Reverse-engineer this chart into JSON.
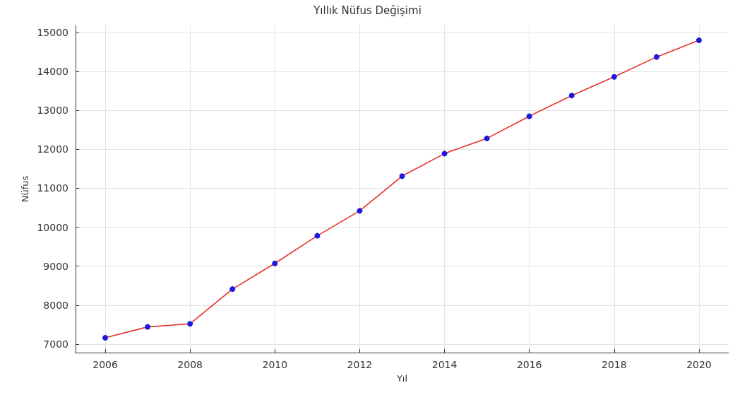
{
  "chart_data": {
    "type": "line",
    "title": "Yıllık Nüfus Değişimi",
    "xlabel": "Yıl",
    "ylabel": "Nüfus",
    "x": [
      2006,
      2007,
      2008,
      2009,
      2010,
      2011,
      2012,
      2013,
      2014,
      2015,
      2016,
      2017,
      2018,
      2019,
      2020
    ],
    "series": [
      {
        "color": "#e8302a",
        "colors": [
          "#1a1adc",
          "#1a1adc",
          "#1a1adc",
          "#1a1adc",
          "#1a1adc",
          "#1a1adc",
          "#1a1adc",
          "#1a1adc",
          "#1a1adc",
          "#1a1adc",
          "#1a1adc",
          "#1a1adc",
          "#1a1adc",
          "#1a1adc",
          "#1a1adc"
        ],
        "values": [
          7160,
          7440,
          7520,
          8410,
          9070,
          9780,
          10420,
          11310,
          11890,
          12280,
          12850,
          13380,
          13860,
          14370,
          14800
        ]
      }
    ],
    "xlim": [
      2005.3,
      2020.7
    ],
    "xticks": [
      2006,
      2008,
      2010,
      2012,
      2014,
      2016,
      2018,
      2020
    ],
    "ylim": [
      6780,
      15180
    ],
    "yticks": [
      7000,
      8000,
      9000,
      10000,
      11000,
      12000,
      13000,
      14000,
      15000
    ],
    "grid": true,
    "marker": "circle",
    "line_style": "solid"
  }
}
